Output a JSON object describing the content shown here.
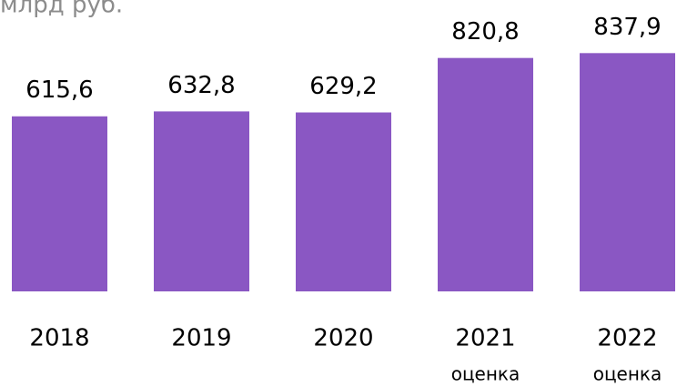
{
  "chart_data": {
    "type": "bar",
    "title": "млрд руб.",
    "categories": [
      "2018",
      "2019",
      "2020",
      "2021",
      "2022"
    ],
    "category_notes": [
      null,
      null,
      null,
      "оценка",
      "оценка"
    ],
    "values": [
      615.6,
      632.8,
      629.2,
      820.8,
      837.9
    ],
    "value_labels": [
      "615,6",
      "632,8",
      "629,2",
      "820,8",
      "837,9"
    ],
    "color": "#8a57c3"
  }
}
